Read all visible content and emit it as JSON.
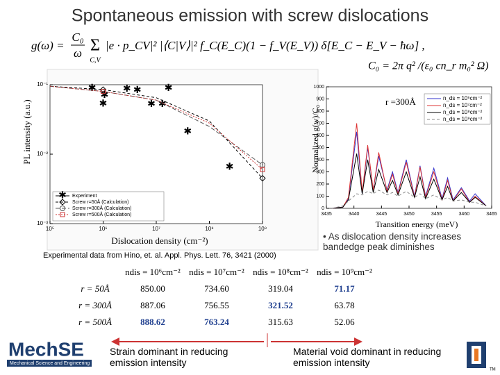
{
  "title": "Spontaneous emission with screw dislocations",
  "formula": {
    "lhs": "g(ω) =",
    "c0": "C₀",
    "omega": "ω",
    "sum": "Σ",
    "sub": "C,V",
    "body": "|e · p_CV|² |⟨C|V⟩|² f_C(E_C)(1 − f_V(E_V)) δ[E_C − E_V − ħω] ,",
    "c0_def": "C₀ = 2π q² /(ε₀ cn_r m₀² Ω)"
  },
  "chart_data": [
    {
      "type": "scatter",
      "xlabel": "Dislocation density (cm⁻²)",
      "ylabel": "PL intensity (a.u.)",
      "log_x": true,
      "log_y": true,
      "xlim": [
        100000,
        1000000000
      ],
      "xticks": [
        {
          "value": 100000,
          "label": "10⁵"
        },
        {
          "value": 1000000,
          "label": "10⁶"
        },
        {
          "value": 10000000,
          "label": "10⁷"
        },
        {
          "value": 100000000,
          "label": "10⁸"
        },
        {
          "value": 1000000000,
          "label": "10⁹"
        }
      ],
      "ylim": [
        0.001,
        0.1
      ],
      "yticks": [
        {
          "value": 0.001,
          "label": "10⁻³"
        },
        {
          "value": 0.01,
          "label": "10⁻²"
        },
        {
          "value": 0.1,
          "label": "10⁻¹"
        }
      ],
      "series": [
        {
          "name": "Experiment",
          "color": "#000000",
          "marker": "star",
          "x": [
            620000,
            1060000,
            1000000,
            2800000,
            4400000,
            8100000,
            13000000,
            17000000,
            39000000,
            240000000
          ],
          "values": [
            0.089,
            0.07,
            0.053,
            0.087,
            0.083,
            0.052,
            0.052,
            0.089,
            0.021,
            0.0065
          ]
        },
        {
          "name": "Screw r=50Å (Calculation)",
          "color": "#000000",
          "marker": "diamond",
          "dash": "4 3",
          "x": [
            100000,
            1000000,
            10000000,
            100000000,
            1000000000
          ],
          "values": [
            0.095,
            0.085,
            0.065,
            0.03,
            0.0045
          ]
        },
        {
          "name": "Screw r=300Å (Calculation)",
          "color": "#555555",
          "marker": "circle",
          "dash": "6 3",
          "x": [
            100000,
            1000000,
            10000000,
            100000000,
            1000000000
          ],
          "values": [
            0.095,
            0.08,
            0.06,
            0.025,
            0.007
          ]
        },
        {
          "name": "Screw r=500Å (Calculation)",
          "color": "#cc3333",
          "marker": "square",
          "dash": "2 2",
          "x": [
            100000,
            1000000,
            10000000,
            100000000,
            1000000000
          ],
          "values": [
            0.095,
            0.08,
            0.06,
            0.028,
            0.006
          ]
        }
      ]
    },
    {
      "type": "line",
      "xlabel": "Transition energy (meV)",
      "ylabel": "Normalized g(w)/C₀",
      "annotation": "r =300Å",
      "xlim": [
        3435,
        3465
      ],
      "xticks": [
        3435,
        3440,
        3445,
        3450,
        3455,
        3460,
        3465
      ],
      "ylim": [
        0,
        1000
      ],
      "yticks": [
        0,
        100,
        200,
        300,
        400,
        500,
        600,
        700,
        800,
        900,
        1000
      ],
      "x": [
        3436,
        3438,
        3439,
        3440.5,
        3441.5,
        3442.5,
        3443.5,
        3444.5,
        3446,
        3447,
        3448,
        3449.5,
        3451,
        3452,
        3453,
        3454.5,
        3456,
        3457,
        3458,
        3459.5,
        3461,
        3462,
        3464
      ],
      "series": [
        {
          "name": "n_ds = 10⁶cm⁻²",
          "color": "#3333cc",
          "values": [
            0,
            10,
            80,
            630,
            120,
            500,
            150,
            430,
            150,
            300,
            130,
            400,
            100,
            350,
            100,
            330,
            80,
            250,
            70,
            170,
            60,
            120,
            20
          ]
        },
        {
          "name": "n_ds = 10⁷cm⁻²",
          "color": "#dd3333",
          "values": [
            0,
            10,
            90,
            700,
            130,
            520,
            150,
            460,
            140,
            280,
            120,
            380,
            90,
            340,
            90,
            300,
            70,
            230,
            60,
            160,
            50,
            100,
            20
          ]
        },
        {
          "name": "n_ds = 10⁸cm⁻²",
          "color": "#000000",
          "values": [
            0,
            10,
            70,
            450,
            120,
            400,
            130,
            320,
            130,
            230,
            110,
            300,
            90,
            260,
            80,
            240,
            70,
            180,
            60,
            130,
            50,
            90,
            20
          ]
        },
        {
          "name": "n_ds = 10⁹cm⁻²",
          "color": "#888888",
          "dash": "4 3",
          "values": [
            0,
            20,
            60,
            120,
            110,
            140,
            120,
            150,
            110,
            130,
            100,
            140,
            90,
            120,
            80,
            110,
            70,
            90,
            60,
            70,
            50,
            50,
            20
          ]
        }
      ]
    }
  ],
  "caption": "Experimental data from Hino, et. al. Appl. Phys. Lett. 76, 3421 (2000)",
  "bullet": "• As dislocation density increases bandedge peak diminishes",
  "table": {
    "header": [
      "ndis = 10⁶cm⁻²",
      "ndis = 10⁷cm⁻²",
      "ndis = 10⁸cm⁻²",
      "ndis = 10⁹cm⁻²"
    ],
    "rows": [
      [
        "r = 50Å",
        "850.00",
        "734.60",
        "319.04",
        "71.17"
      ],
      [
        "r = 300Å",
        "887.06",
        "756.55",
        "321.52",
        "63.78"
      ],
      [
        "r = 500Å",
        "888.62",
        "763.24",
        "315.63",
        "52.06"
      ]
    ]
  },
  "left_note": "Strain dominant in reducing emission intensity",
  "right_note": "Material void dominant in reducing emission intensity",
  "logo": {
    "name": "MechSE",
    "sub": "Mechanical Science and Engineering",
    "tm": "TM"
  }
}
